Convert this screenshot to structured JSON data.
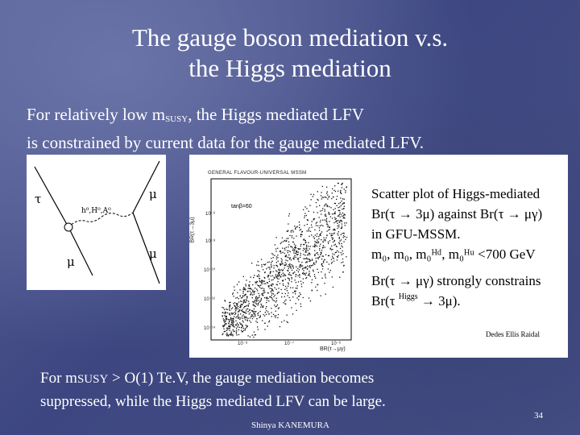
{
  "slide": {
    "title_line1": "The gauge boson mediation v.s.",
    "title_line2": "the Higgs mediation",
    "intro_pre": "For relatively low m",
    "intro_sub": "SUSY",
    "intro_post": ", the Higgs mediated LFV",
    "intro_line2": "is constrained by current data for the gauge mediated LFV.",
    "feynman": {
      "tau_label": "τ",
      "mu_top_label": "μ",
      "mediator_label": "h⁰,H⁰,A⁰",
      "mu_right_label": "μ",
      "mu_bottom_label": "μ"
    },
    "scatter": {
      "header": "GENERAL FLAVOUR-UNIVERSAL MSSM",
      "tanbeta_label": "tanβ=60",
      "ylabel": "BR(τ→3μ)",
      "xlabel": "BR(τ→μγ)",
      "y_ticks": [
        "10⁻⁶",
        "10⁻⁸",
        "10⁻¹⁰",
        "10⁻¹²",
        "10⁻¹⁴"
      ],
      "x_ticks": [
        "10⁻⁸",
        "10⁻⁷",
        "10⁻⁶"
      ],
      "text_line1": "Scatter  plot  of  Higgs-mediated",
      "text_line2": "Br(τ → 3μ)  against  Br(τ → μγ)",
      "text_line3": "in GFU-MSSM.",
      "text_line4": "m₀, m₀, m₀ᴴᵈ, m₀ᴴᵘ <700 GeV",
      "text_line5": "Br(τ → μγ)  strongly constrains",
      "text_line6a": "Br(τ",
      "text_line6b": "Higgs",
      "text_line6c": "→ 3μ).",
      "credit": "Dedes Ellis Raidal"
    },
    "bottom_line1_a": "For m",
    "bottom_line1_sc": "SUSY",
    "bottom_line1_b": " >  O(1) Te.V,  the gauge mediation becomes",
    "bottom_line2": "suppressed, while the Higgs mediated LFV can be large.",
    "footer": "Shinya KANEMURA",
    "page_number": "34"
  }
}
